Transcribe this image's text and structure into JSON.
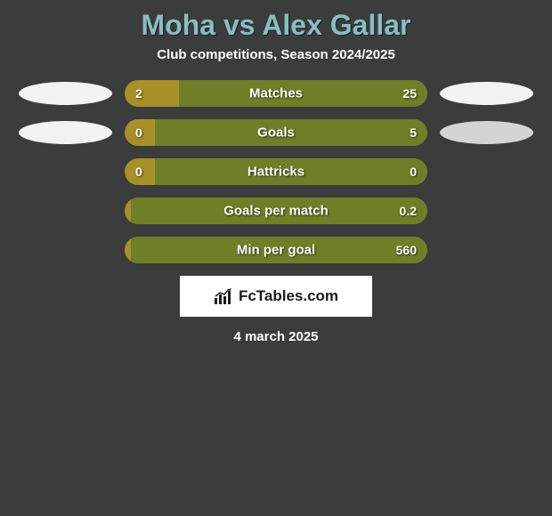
{
  "title": "Moha vs Alex Gallar",
  "subtitle": "Club competitions, Season 2024/2025",
  "date": "4 march 2025",
  "watermark": "FcTables.com",
  "colors": {
    "background": "#3b3c3c",
    "title": "#89bdc4",
    "left_bar": "#a88f27",
    "right_bar": "#6f7f28",
    "oval_light": "#f2f2f2",
    "oval_gray": "#d4d4d4",
    "text": "#ffffff"
  },
  "rows": [
    {
      "label": "Matches",
      "left_value": "2",
      "right_value": "25",
      "left_pct": 18,
      "right_pct": 82,
      "show_ovals": true,
      "left_oval_color": "#f2f2f2",
      "right_oval_color": "#f2f2f2"
    },
    {
      "label": "Goals",
      "left_value": "0",
      "right_value": "5",
      "left_pct": 10,
      "right_pct": 90,
      "show_ovals": true,
      "left_oval_color": "#f2f2f2",
      "right_oval_color": "#d4d4d4"
    },
    {
      "label": "Hattricks",
      "left_value": "0",
      "right_value": "0",
      "left_pct": 10,
      "right_pct": 90,
      "show_ovals": false
    },
    {
      "label": "Goals per match",
      "left_value": "",
      "right_value": "0.2",
      "left_pct": 2,
      "right_pct": 98,
      "show_ovals": false
    },
    {
      "label": "Min per goal",
      "left_value": "",
      "right_value": "560",
      "left_pct": 2,
      "right_pct": 98,
      "show_ovals": false
    }
  ]
}
